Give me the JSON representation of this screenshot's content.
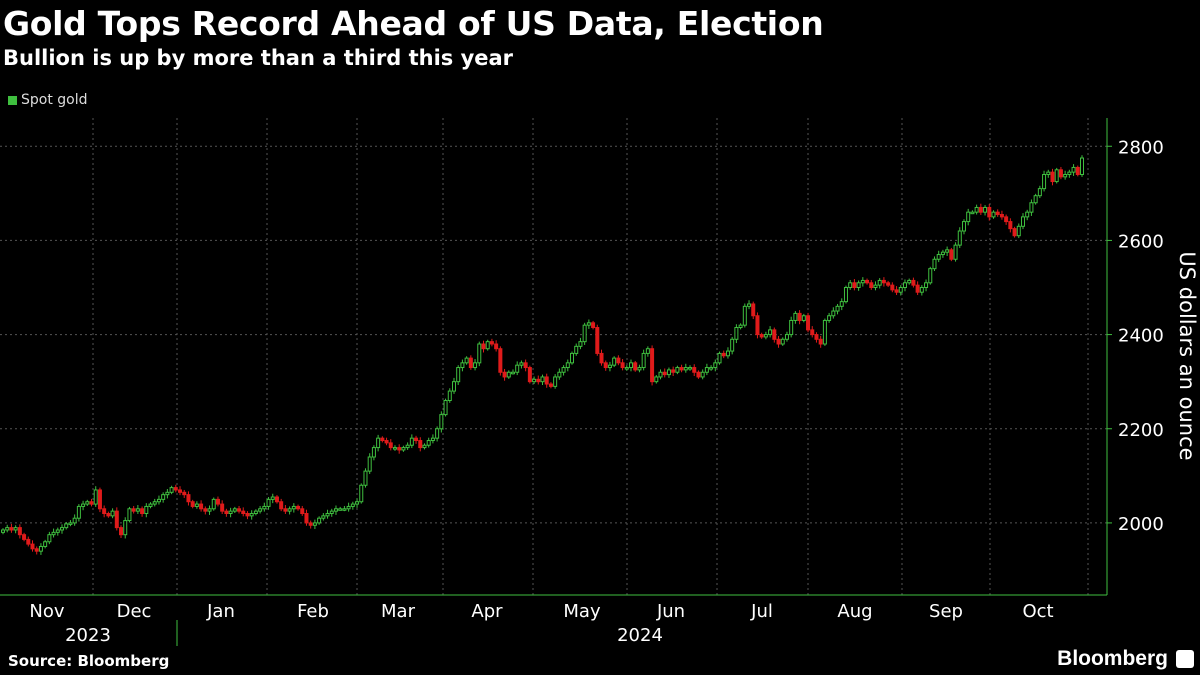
{
  "header": {
    "title": "Gold Tops Record Ahead of US Data, Election",
    "subtitle": "Bullion is up by more than a third this year"
  },
  "footer": {
    "source": "Source: Bloomberg",
    "brand": "Bloomberg"
  },
  "colors": {
    "up": "#3fbf3f",
    "down": "#e01b1b",
    "grid": "#555555",
    "axis": "#3fbf3f"
  },
  "chart_data": {
    "type": "candlestick",
    "title": "Gold Tops Record Ahead of US Data, Election",
    "subtitle": "Bullion is up by more than a third this year",
    "legend": [
      {
        "name": "Spot gold",
        "color": "#3fbf3f"
      }
    ],
    "legend_position": "top-left",
    "ylabel": "US dollars an ounce",
    "ylim": [
      1900,
      2860
    ],
    "yticks": [
      2000,
      2200,
      2400,
      2600,
      2800
    ],
    "grid": true,
    "months": [
      "Nov",
      "Dec",
      "Jan",
      "Feb",
      "Mar",
      "Apr",
      "May",
      "Jun",
      "Jul",
      "Aug",
      "Sep",
      "Oct"
    ],
    "years": [
      "2023",
      "2024"
    ],
    "closes_by_month": [
      [
        1985,
        1990,
        1985,
        1990,
        1975,
        1965,
        1955,
        1945,
        1940,
        1950,
        1960,
        1975,
        1980,
        1985,
        1990,
        1998,
        2000,
        2010,
        2035,
        2040,
        2045
      ],
      [
        2040,
        2070,
        2030,
        2020,
        2015,
        2025,
        1990,
        1975,
        2005,
        2030,
        2025,
        2030,
        2020,
        2035,
        2040,
        2045,
        2050,
        2060,
        2065,
        2075,
        2070
      ],
      [
        2065,
        2060,
        2045,
        2035,
        2040,
        2030,
        2025,
        2030,
        2050,
        2040,
        2025,
        2020,
        2025,
        2030,
        2025,
        2020,
        2015,
        2020,
        2025,
        2030,
        2035,
        2050
      ],
      [
        2055,
        2045,
        2030,
        2025,
        2030,
        2035,
        2030,
        2020,
        2000,
        1995,
        2000,
        2010,
        2015,
        2020,
        2025,
        2030,
        2030,
        2030,
        2035,
        2040
      ],
      [
        2045,
        2080,
        2110,
        2140,
        2160,
        2180,
        2175,
        2170,
        2160,
        2160,
        2155,
        2160,
        2165,
        2180,
        2175,
        2160,
        2165,
        2175,
        2180,
        2200,
        2230
      ],
      [
        2260,
        2280,
        2300,
        2330,
        2340,
        2350,
        2330,
        2340,
        2380,
        2370,
        2385,
        2380,
        2370,
        2320,
        2310,
        2320,
        2320,
        2335,
        2340,
        2330,
        2300
      ],
      [
        2305,
        2300,
        2310,
        2295,
        2290,
        2310,
        2320,
        2330,
        2340,
        2360,
        2375,
        2385,
        2420,
        2425,
        2415,
        2360,
        2340,
        2330,
        2335,
        2350,
        2340,
        2330
      ],
      [
        2330,
        2340,
        2325,
        2330,
        2360,
        2370,
        2300,
        2310,
        2320,
        2315,
        2325,
        2320,
        2330,
        2325,
        2330,
        2330,
        2320,
        2310,
        2320
      ],
      [
        2330,
        2330,
        2340,
        2360,
        2355,
        2365,
        2390,
        2415,
        2420,
        2460,
        2465,
        2440,
        2400,
        2395,
        2400,
        2410,
        2390,
        2380,
        2390,
        2400,
        2430,
        2445
      ],
      [
        2430,
        2440,
        2410,
        2400,
        2390,
        2380,
        2430,
        2440,
        2450,
        2460,
        2470,
        2500,
        2510,
        2500,
        2510,
        2515,
        2510,
        2500,
        2505,
        2515,
        2510,
        2505
      ],
      [
        2495,
        2490,
        2500,
        2510,
        2515,
        2505,
        2490,
        2500,
        2510,
        2540,
        2560,
        2570,
        2575,
        2580,
        2560,
        2590,
        2620,
        2640,
        2660,
        2660,
        2670
      ],
      [
        2660,
        2670,
        2650,
        2660,
        2655,
        2650,
        2640,
        2625,
        2610,
        2630,
        2650,
        2660,
        2680,
        2695,
        2710,
        2740,
        2745,
        2725,
        2750,
        2735,
        2740,
        2745,
        2755,
        2740,
        2775
      ]
    ]
  }
}
